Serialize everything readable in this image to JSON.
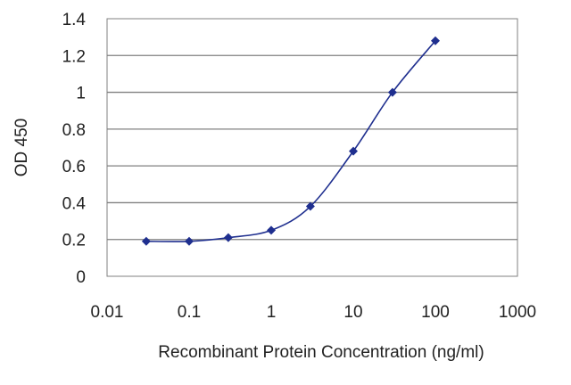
{
  "chart_data": {
    "type": "scatter",
    "xlabel": "Recombinant Protein Concentration (ng/ml)",
    "ylabel": "OD 450",
    "xscale": "log",
    "xlim": [
      0.01,
      1000
    ],
    "ylim": [
      0,
      1.4
    ],
    "x_ticks": [
      "0.01",
      "0.1",
      "1",
      "10",
      "100",
      "1000"
    ],
    "y_ticks": [
      "0",
      "0.2",
      "0.4",
      "0.6",
      "0.8",
      "1",
      "1.2",
      "1.4"
    ],
    "grid": "horizontal",
    "legend": "none",
    "series": [
      {
        "x": [
          0.03,
          0.1,
          0.3,
          1,
          3,
          10,
          30,
          100
        ],
        "y": [
          0.19,
          0.19,
          0.21,
          0.25,
          0.38,
          0.68,
          1.0,
          1.28
        ]
      }
    ],
    "colors": {
      "series": "#1f2f8f",
      "grid": "#808080",
      "plot_border": "#808080"
    }
  }
}
